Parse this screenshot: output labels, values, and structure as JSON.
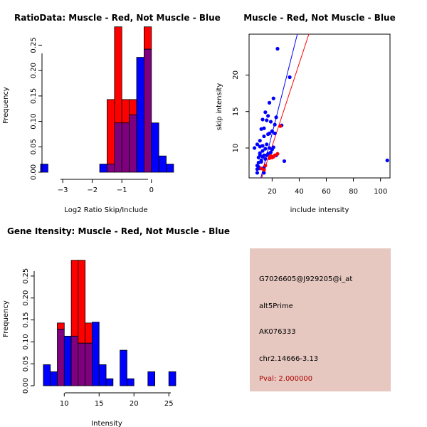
{
  "info": {
    "probe_id": "G7026605@J929205@i_at",
    "event_type": "alt5Prime",
    "accession": "AK076333",
    "location": "chr2.14666-3.13",
    "pval": "Pval: 2.000000"
  },
  "colors": {
    "red": "#ff0000",
    "blue": "#0000ff",
    "overlap": "#7f007f",
    "panel_bg": "#e6c8c0",
    "pval_text": "#aa0000"
  },
  "chart_data": [
    {
      "type": "bar",
      "id": "ratio",
      "title": "RatioData: Muscle - Red, Not Muscle - Blue",
      "xlabel": "Log2 Ratio Skip/Include",
      "ylabel": "Frequency",
      "xlim": [
        -3.75,
        0.8
      ],
      "ylim": [
        0,
        0.28
      ],
      "xticks": [
        -3,
        -2,
        -1,
        0
      ],
      "yticks": [
        0.0,
        0.05,
        0.1,
        0.15,
        0.2,
        0.25
      ],
      "ytick_labels": [
        "0.00",
        "0.05",
        "0.10",
        "0.15",
        "0.20",
        "0.25"
      ],
      "bin_width": 0.25,
      "series": [
        {
          "name": "Muscle",
          "color": "red",
          "bins": [
            [
              -1.5,
              0.143
            ],
            [
              -1.25,
              0.286
            ],
            [
              -1.0,
              0.143
            ],
            [
              -0.75,
              0.143
            ],
            [
              -0.5,
              0.0
            ],
            [
              -0.25,
              0.286
            ]
          ]
        },
        {
          "name": "Not Muscle",
          "color": "blue",
          "bins": [
            [
              -3.75,
              0.016
            ],
            [
              -1.75,
              0.016
            ],
            [
              -1.5,
              0.016
            ],
            [
              -1.25,
              0.097
            ],
            [
              -1.0,
              0.097
            ],
            [
              -0.75,
              0.113
            ],
            [
              -0.5,
              0.226
            ],
            [
              -0.25,
              0.242
            ],
            [
              0.0,
              0.097
            ],
            [
              0.25,
              0.032
            ],
            [
              0.5,
              0.016
            ]
          ]
        }
      ]
    },
    {
      "type": "scatter",
      "id": "scatter",
      "title": "Muscle - Red, Not Muscle - Blue",
      "xlabel": "include intensity",
      "ylabel": "skip intensity",
      "xlim": [
        3,
        107
      ],
      "ylim": [
        5.9,
        25.6
      ],
      "xticks": [
        20,
        40,
        60,
        80,
        100
      ],
      "yticks": [
        10,
        15,
        20
      ],
      "series": [
        {
          "name": "Muscle",
          "color": "red",
          "points": [
            [
              12,
              7.2
            ],
            [
              14,
              7.0
            ],
            [
              15,
              7.6
            ],
            [
              18,
              8.6
            ],
            [
              19,
              8.9
            ],
            [
              20,
              8.7
            ],
            [
              21,
              8.8
            ],
            [
              22,
              9.0
            ],
            [
              24,
              9.2
            ],
            [
              26,
              13.0
            ]
          ]
        },
        {
          "name": "Not Muscle",
          "color": "blue",
          "points": [
            [
              9,
              6.6
            ],
            [
              9,
              7.1
            ],
            [
              9,
              7.6
            ],
            [
              10,
              7.4
            ],
            [
              10,
              8.0
            ],
            [
              10,
              8.7
            ],
            [
              11,
              7.2
            ],
            [
              11,
              9.0
            ],
            [
              11,
              9.3
            ],
            [
              11,
              10.2
            ],
            [
              11,
              11.0
            ],
            [
              12,
              8.1
            ],
            [
              12,
              8.3
            ],
            [
              12,
              12.6
            ],
            [
              13,
              8.8
            ],
            [
              13,
              9.6
            ],
            [
              13,
              10.3
            ],
            [
              13,
              13.9
            ],
            [
              14,
              6.6
            ],
            [
              14,
              7.3
            ],
            [
              14,
              9.0
            ],
            [
              14,
              11.6
            ],
            [
              14,
              12.7
            ],
            [
              15,
              8.5
            ],
            [
              15,
              9.9
            ],
            [
              15,
              14.9
            ],
            [
              16,
              9.0
            ],
            [
              16,
              10.5
            ],
            [
              16,
              13.8
            ],
            [
              17,
              9.2
            ],
            [
              17,
              11.9
            ],
            [
              17,
              14.4
            ],
            [
              18,
              10.0
            ],
            [
              18,
              12.0
            ],
            [
              18,
              16.2
            ],
            [
              19,
              9.4
            ],
            [
              19,
              13.6
            ],
            [
              20,
              9.8
            ],
            [
              20,
              12.3
            ],
            [
              21,
              10.1
            ],
            [
              21,
              16.8
            ],
            [
              22,
              12.0
            ],
            [
              22,
              13.2
            ],
            [
              23,
              9.0
            ],
            [
              23,
              14.2
            ],
            [
              24,
              23.6
            ],
            [
              27,
              13.1
            ],
            [
              29,
              8.2
            ],
            [
              33,
              19.7
            ],
            [
              7,
              10.0
            ],
            [
              9,
              10.5
            ],
            [
              105,
              8.3
            ]
          ]
        }
      ],
      "lines": [
        {
          "color": "blue",
          "from": [
            11.7,
            5.9
          ],
          "to": [
            38.6,
            25.6
          ]
        },
        {
          "color": "red",
          "from": [
            12.3,
            5.9
          ],
          "to": [
            47.1,
            25.6
          ]
        }
      ]
    },
    {
      "type": "bar",
      "id": "intensity",
      "title": "Gene Itensity: Muscle - Red, Not Muscle - Blue",
      "xlabel": "Intensity",
      "ylabel": "Frequency",
      "xlim": [
        6.6,
        26.0
      ],
      "ylim": [
        0,
        0.305
      ],
      "xticks": [
        10,
        15,
        20,
        25
      ],
      "yticks": [
        0.0,
        0.05,
        0.1,
        0.15,
        0.2,
        0.25
      ],
      "ytick_labels": [
        "0.00",
        "0.05",
        "0.10",
        "0.15",
        "0.20",
        "0.25"
      ],
      "bin_width": 1,
      "series": [
        {
          "name": "Muscle",
          "color": "red",
          "bins": [
            [
              9,
              0.143
            ],
            [
              11,
              0.286
            ],
            [
              12,
              0.286
            ],
            [
              13,
              0.143
            ]
          ]
        },
        {
          "name": "Not Muscle",
          "color": "blue",
          "bins": [
            [
              7,
              0.048
            ],
            [
              8,
              0.032
            ],
            [
              9,
              0.129
            ],
            [
              10,
              0.113
            ],
            [
              11,
              0.113
            ],
            [
              12,
              0.097
            ],
            [
              13,
              0.097
            ],
            [
              14,
              0.145
            ],
            [
              15,
              0.048
            ],
            [
              16,
              0.016
            ],
            [
              18,
              0.081
            ],
            [
              19,
              0.016
            ],
            [
              22,
              0.032
            ],
            [
              25,
              0.032
            ]
          ]
        }
      ]
    }
  ]
}
